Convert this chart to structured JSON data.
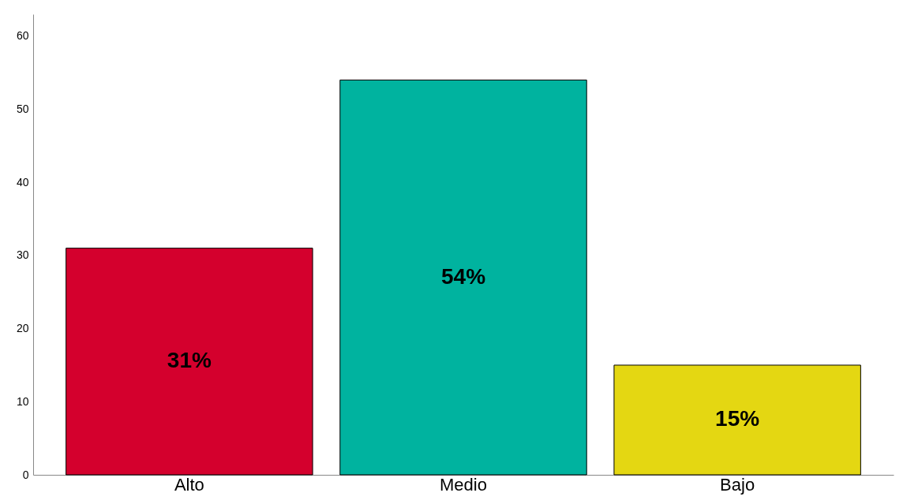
{
  "chart_data": {
    "type": "bar",
    "categories": [
      "Alto",
      "Medio",
      "Bajo"
    ],
    "values": [
      31,
      54,
      15
    ],
    "colors": [
      "#d4002d",
      "#00b39f",
      "#e4d712"
    ],
    "value_labels": [
      "31%",
      "54%",
      "15%"
    ],
    "ylim": [
      0,
      63
    ],
    "yticks": [
      0,
      10,
      20,
      30,
      40,
      50,
      60
    ],
    "grid": false
  }
}
